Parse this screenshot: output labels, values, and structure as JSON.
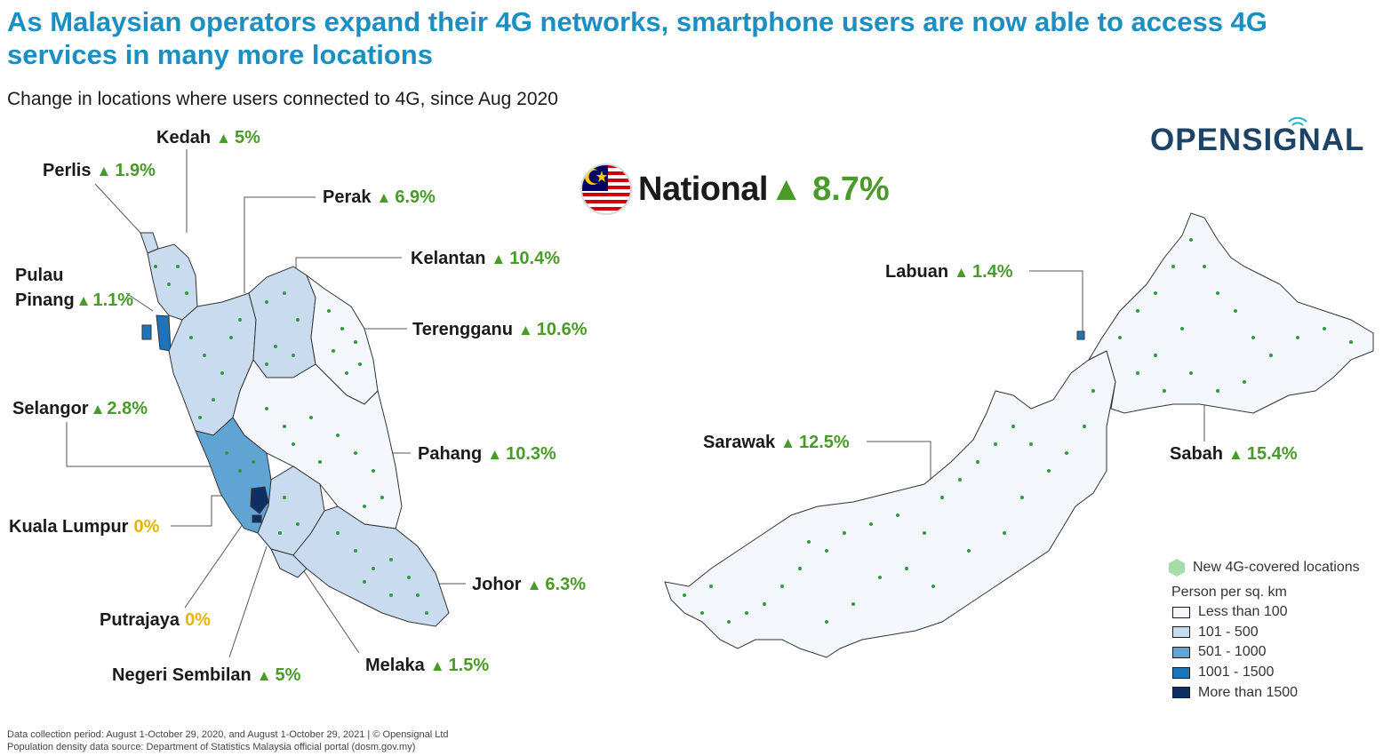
{
  "title": "As Malaysian operators expand their 4G networks, smartphone users are now able to access 4G services in many more locations",
  "subtitle": "Change in locations where users connected to 4G, since Aug 2020",
  "brand": {
    "logo_text": "OPENSIGNAL"
  },
  "national": {
    "label": "National",
    "arrow": "▲",
    "value": "8.7%"
  },
  "regions": {
    "kedah": {
      "name": "Kedah",
      "arrow": "▲",
      "value": "5%"
    },
    "perlis": {
      "name": "Perlis",
      "arrow": "▲",
      "value": "1.9%"
    },
    "perak": {
      "name": "Perak",
      "arrow": "▲",
      "value": "6.9%"
    },
    "kelantan": {
      "name": "Kelantan",
      "arrow": "▲",
      "value": "10.4%"
    },
    "pulau_pinang": {
      "name_line1": "Pulau",
      "name_line2": "Pinang",
      "arrow": "▲",
      "value": "1.1%"
    },
    "terengganu": {
      "name": "Terengganu",
      "arrow": "▲",
      "value": "10.6%"
    },
    "selangor": {
      "name": "Selangor",
      "arrow": "▲",
      "value": "2.8%"
    },
    "pahang": {
      "name": "Pahang",
      "arrow": "▲",
      "value": "10.3%"
    },
    "kuala_lumpur": {
      "name": "Kuala Lumpur",
      "value": "0%"
    },
    "johor": {
      "name": "Johor",
      "arrow": "▲",
      "value": "6.3%"
    },
    "putrajaya": {
      "name": "Putrajaya",
      "value": "0%"
    },
    "melaka": {
      "name": "Melaka",
      "arrow": "▲",
      "value": "1.5%"
    },
    "negeri_sembilan": {
      "name": "Negeri Sembilan",
      "arrow": "▲",
      "value": "5%"
    },
    "labuan": {
      "name": "Labuan",
      "arrow": "▲",
      "value": "1.4%"
    },
    "sarawak": {
      "name": "Sarawak",
      "arrow": "▲",
      "value": "12.5%"
    },
    "sabah": {
      "name": "Sabah",
      "arrow": "▲",
      "value": "15.4%"
    }
  },
  "legend": {
    "dots_label": "New 4G-covered locations",
    "density_title": "Person per sq.  km",
    "bins": [
      {
        "label": "Less than 100",
        "color": "#f4f8fc"
      },
      {
        "label": "101 - 500",
        "color": "#c9dcef"
      },
      {
        "label": "501 - 1000",
        "color": "#5fa4d3"
      },
      {
        "label": "1001 - 1500",
        "color": "#1d74b8"
      },
      {
        "label": "More than 1500",
        "color": "#0e2f63"
      }
    ]
  },
  "colors": {
    "title": "#1b8fc1",
    "increase": "#4a9a2a",
    "zero": "#e8b400",
    "dots": "#2e9a3c",
    "brand": "#1d4466"
  },
  "footnote": {
    "line1": "Data collection period: August 1-October 29, 2020, and August 1-October 29, 2021 | © Opensignal Ltd",
    "line2": "Population density data source: Department of Statistics Malaysia official portal (dosm.gov.my)"
  }
}
